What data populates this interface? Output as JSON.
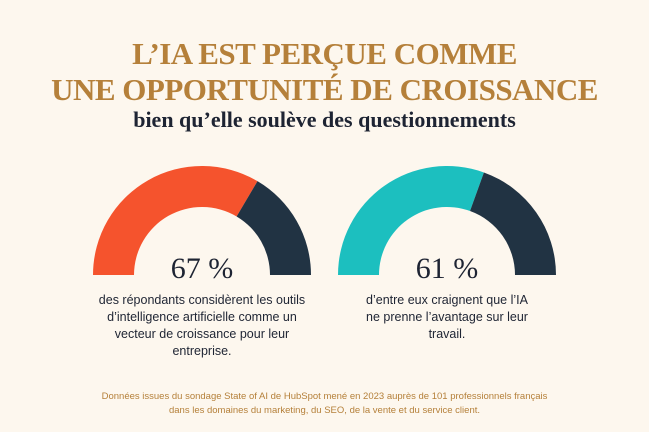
{
  "title": {
    "line1": "L’IA EST PERÇUE COMME",
    "line2": "UNE OPPORTUNITÉ DE CROISSANCE"
  },
  "subtitle": "bien qu’elle soulève des questionnements",
  "colors": {
    "background": "#fdf7ee",
    "accent": "#b5803a",
    "orange": "#f5532d",
    "teal": "#1cbfbf",
    "navy": "#213343"
  },
  "gauges": [
    {
      "value": 67,
      "label": "67 %",
      "color": "#f5532d",
      "text": "des répondants considèrent les outils d’intelligence artificielle comme un vecteur de croissance pour leur entreprise."
    },
    {
      "value": 61,
      "label": "61 %",
      "color": "#1cbfbf",
      "text": "d’entre eux craignent que l’IA ne prenne l’avantage sur leur travail."
    }
  ],
  "footer": {
    "line1": "Données issues du sondage State of AI de HubSpot mené en 2023 auprès de 101 professionnels français",
    "line2": "dans les domaines du marketing, du SEO, de la vente et du service client."
  }
}
